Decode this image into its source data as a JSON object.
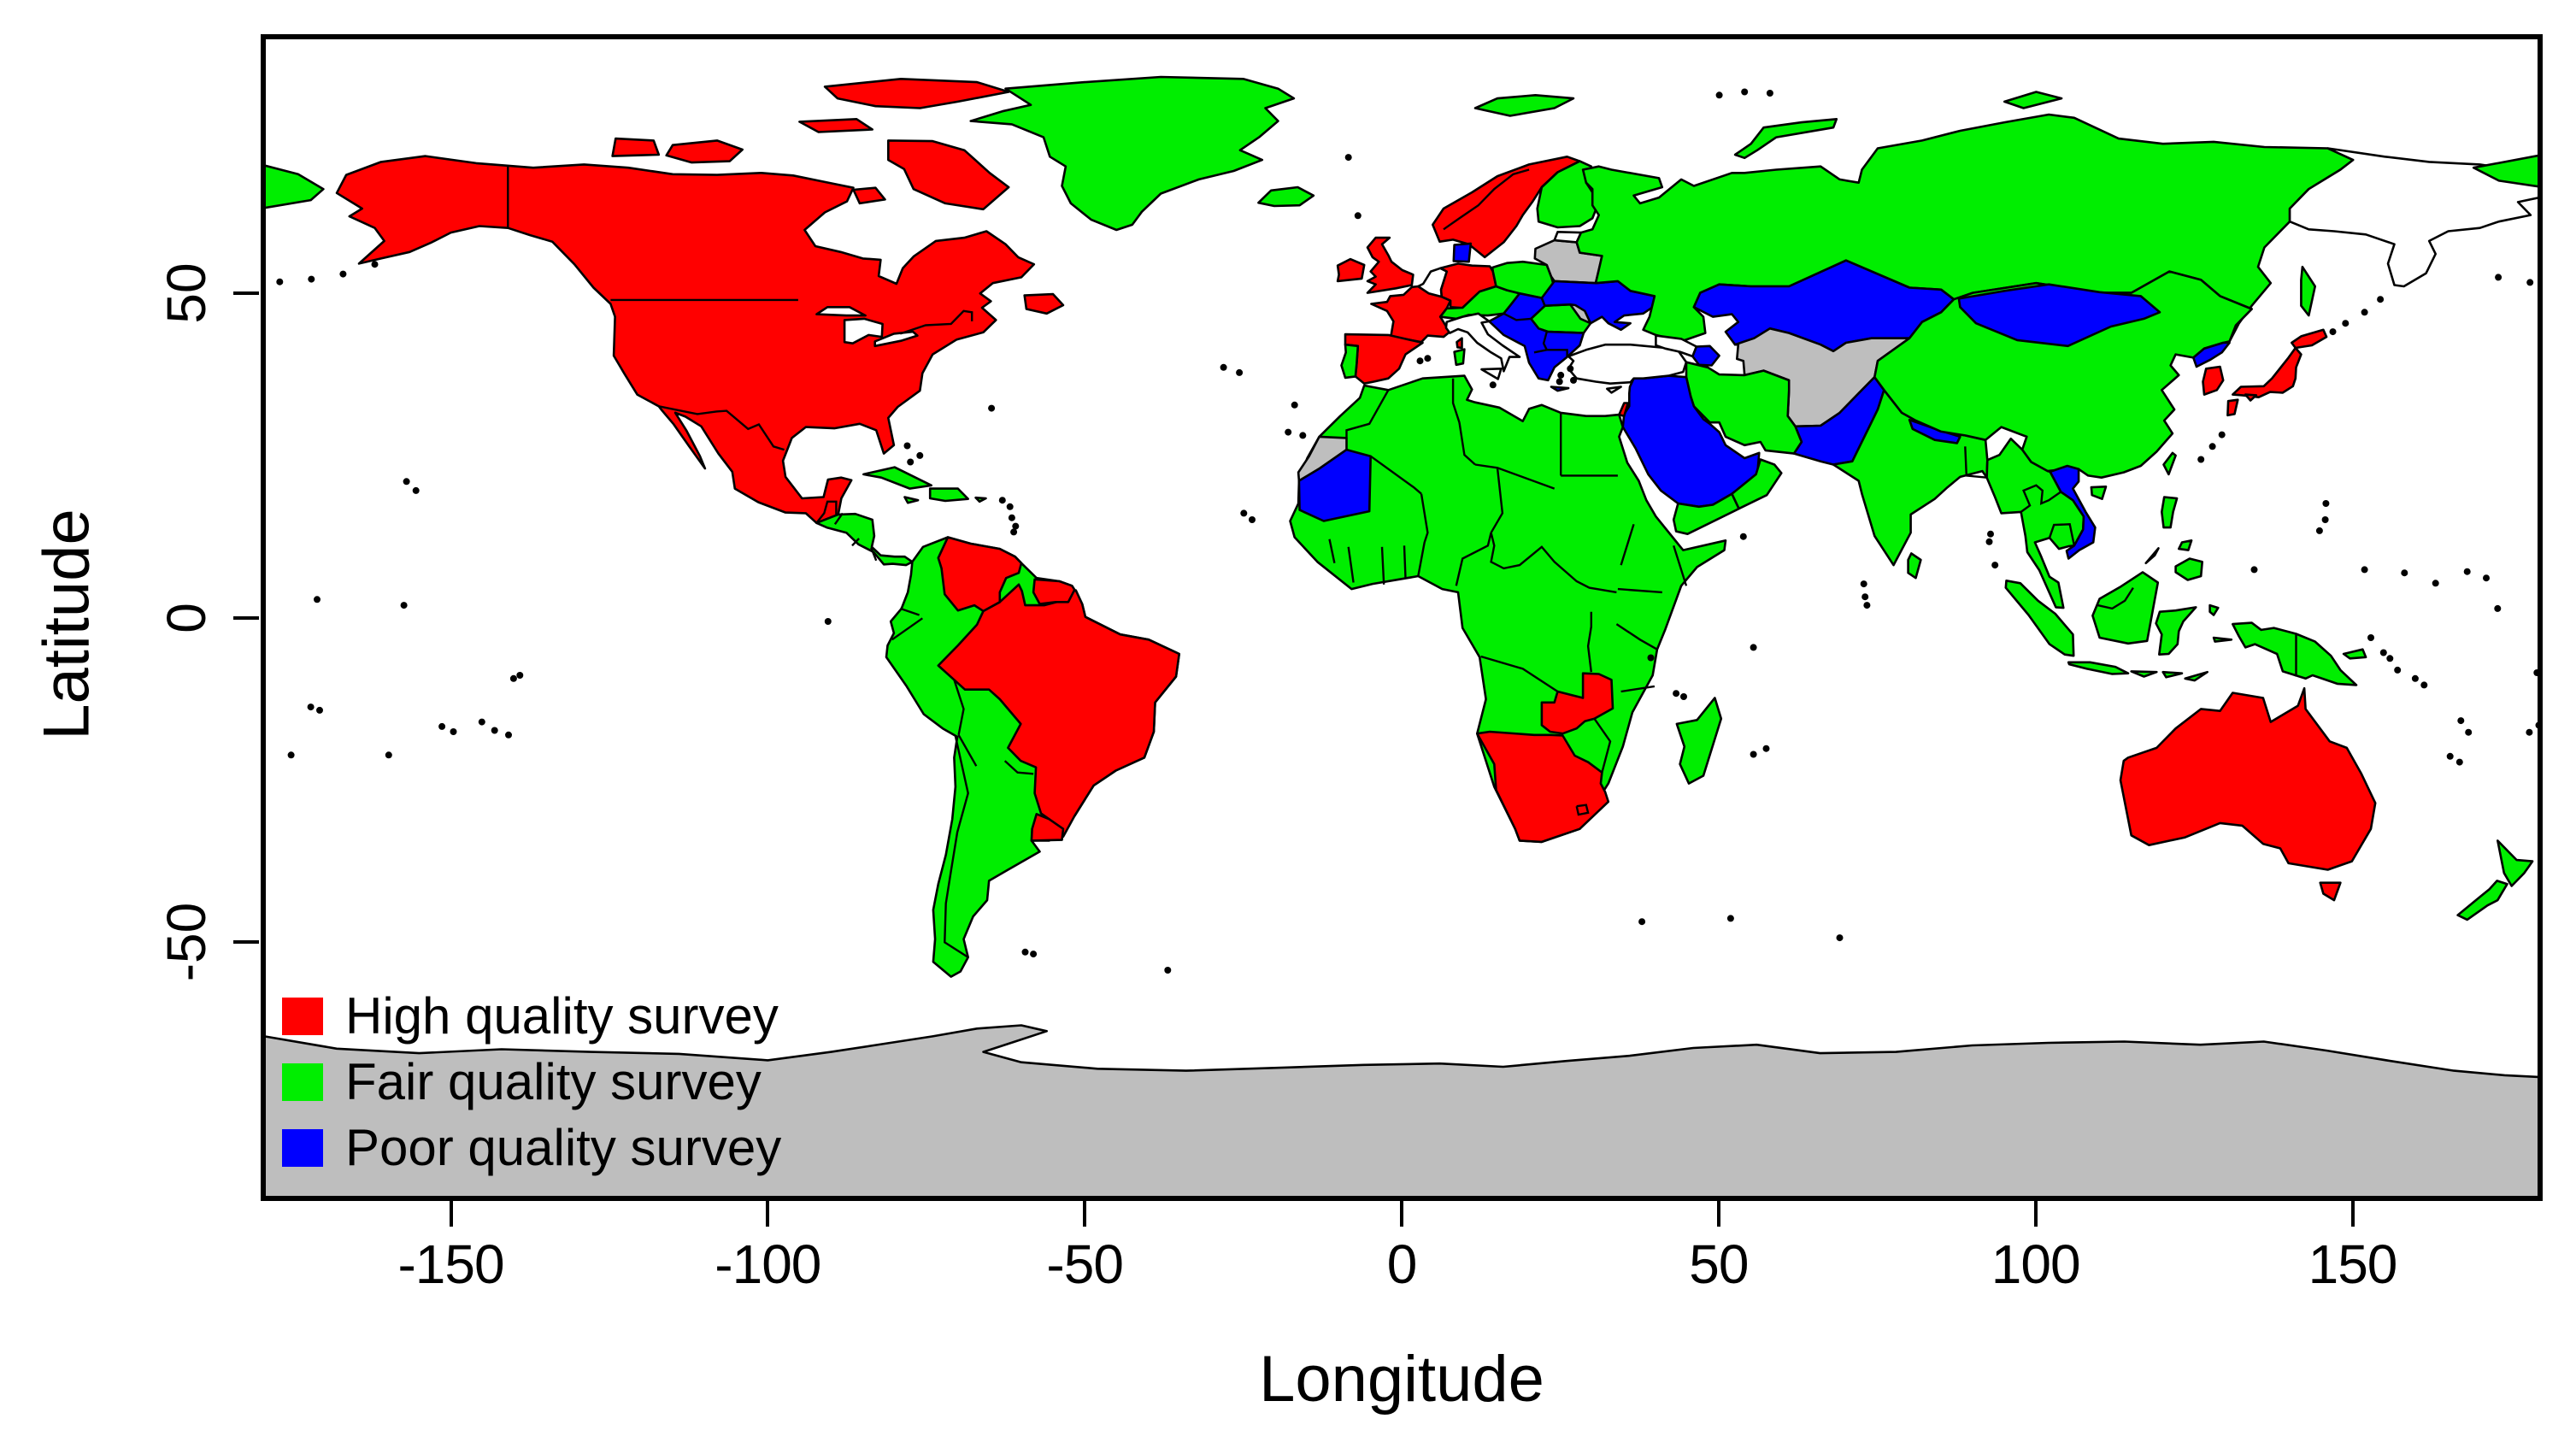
{
  "figure": {
    "xlabel": "Longitude",
    "ylabel": "Latitude",
    "x_ticks": [
      "-150",
      "-100",
      "-50",
      "0",
      "50",
      "100",
      "150"
    ],
    "x_tick_values": [
      -150,
      -100,
      -50,
      0,
      50,
      100,
      150
    ],
    "y_ticks": [
      "50",
      "0",
      "-50"
    ],
    "y_tick_values": [
      50,
      0,
      -50
    ],
    "xlim": [
      -180,
      180
    ],
    "ylim": [
      -90,
      90
    ],
    "frame_color": "#000000",
    "background": "#FFFFFF"
  },
  "legend": {
    "items": [
      {
        "key": "high",
        "label": "High quality survey",
        "color": "#FF0000"
      },
      {
        "key": "fair",
        "label": "Fair quality survey",
        "color": "#00EE00"
      },
      {
        "key": "poor",
        "label": "Poor quality survey",
        "color": "#0000FF"
      }
    ]
  },
  "map_data": {
    "type": "choropleth_world_map",
    "projection": "equirectangular",
    "colors": {
      "high": "#FF0000",
      "fair": "#00EE00",
      "poor": "#0000FF",
      "nodata": "#BEBEBE",
      "unfilled": "#FFFFFF"
    },
    "border_color": "#000000",
    "ocean_color": "#FFFFFF",
    "countries_by_category": {
      "high": [
        "United States",
        "Canada",
        "Mexico",
        "Guatemala",
        "Venezuela",
        "Suriname",
        "French Guiana",
        "Brazil",
        "Uruguay",
        "Ireland",
        "United Kingdom",
        "France",
        "Germany",
        "Spain",
        "Norway",
        "Sweden",
        "Israel",
        "Namibia",
        "Botswana",
        "South Africa",
        "Lesotho",
        "Zambia",
        "South Korea",
        "Japan",
        "Australia"
      ],
      "fair": [
        "Greenland",
        "Iceland",
        "Portugal",
        "Finland",
        "Poland",
        "Czech Republic",
        "Austria",
        "Switzerland",
        "Romania",
        "Russia",
        "Honduras",
        "Nicaragua",
        "Costa Rica",
        "Panama",
        "Cuba",
        "Haiti",
        "Dominican Republic",
        "Jamaica",
        "Colombia",
        "Guyana",
        "Ecuador",
        "Peru",
        "Bolivia",
        "Paraguay",
        "Chile",
        "Argentina",
        "Morocco",
        "Algeria",
        "Tunisia",
        "Libya",
        "Egypt",
        "Mali",
        "Niger",
        "Chad",
        "Sudan",
        "Ethiopia",
        "Somalia",
        "Senegal",
        "Guinea",
        "Ivory Coast",
        "Ghana",
        "Nigeria",
        "Cameroon",
        "Gabon",
        "Democratic Republic of the Congo",
        "Uganda",
        "Kenya",
        "Tanzania",
        "Angola",
        "Zimbabwe",
        "Mozambique",
        "Malawi",
        "Madagascar",
        "Iran",
        "Yemen",
        "Oman",
        "India",
        "Bangladesh",
        "Sri Lanka",
        "Myanmar",
        "Thailand",
        "Laos",
        "Cambodia",
        "Malaysia",
        "Indonesia",
        "Philippines",
        "Taiwan",
        "China",
        "Papua New Guinea",
        "New Zealand"
      ],
      "poor": [
        "Denmark",
        "Hungary",
        "Slovakia",
        "Croatia",
        "Bosnia and Herzegovina",
        "Serbia",
        "Albania",
        "Macedonia",
        "Greece",
        "Bulgaria",
        "Ukraine",
        "Azerbaijan",
        "Syria",
        "Iraq",
        "Jordan",
        "Saudi Arabia",
        "Kuwait",
        "Kazakhstan",
        "Mongolia",
        "Pakistan",
        "Nepal",
        "North Korea",
        "Vietnam",
        "Mauritania"
      ],
      "nodata": [
        "Antarctica",
        "Western Sahara",
        "Lithuania",
        "Latvia",
        "Belarus",
        "Moldova",
        "Turkmenistan",
        "Uzbekistan",
        "Tajikistan",
        "Kyrgyzstan",
        "Afghanistan"
      ],
      "unfilled": [
        "Italy",
        "Netherlands",
        "Belgium",
        "Estonia",
        "Turkey",
        "Georgia",
        "Armenia",
        "Northeast Siberia"
      ]
    }
  }
}
